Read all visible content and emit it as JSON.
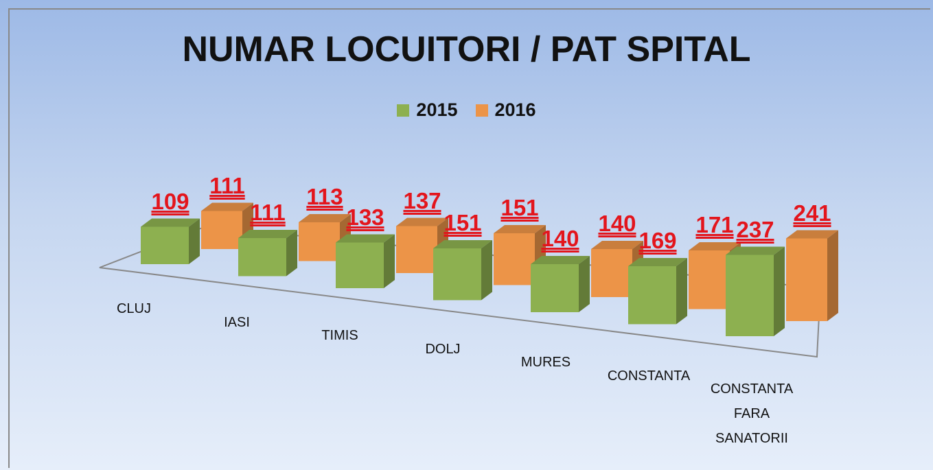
{
  "chart_data": {
    "type": "bar3d",
    "title": "NUMAR LOCUITORI / PAT SPITAL",
    "categories": [
      "CLUJ",
      "IASI",
      "TIMIS",
      "DOLJ",
      "MURES",
      "CONSTANTA",
      "CONSTANTA FARA SANATORII"
    ],
    "series": [
      {
        "name": "2015",
        "color": "#8db050",
        "values": [
          109,
          111,
          133,
          151,
          140,
          169,
          237
        ]
      },
      {
        "name": "2016",
        "color": "#ec9448",
        "values": [
          111,
          113,
          137,
          151,
          140,
          171,
          241
        ]
      }
    ],
    "legend": "top"
  }
}
